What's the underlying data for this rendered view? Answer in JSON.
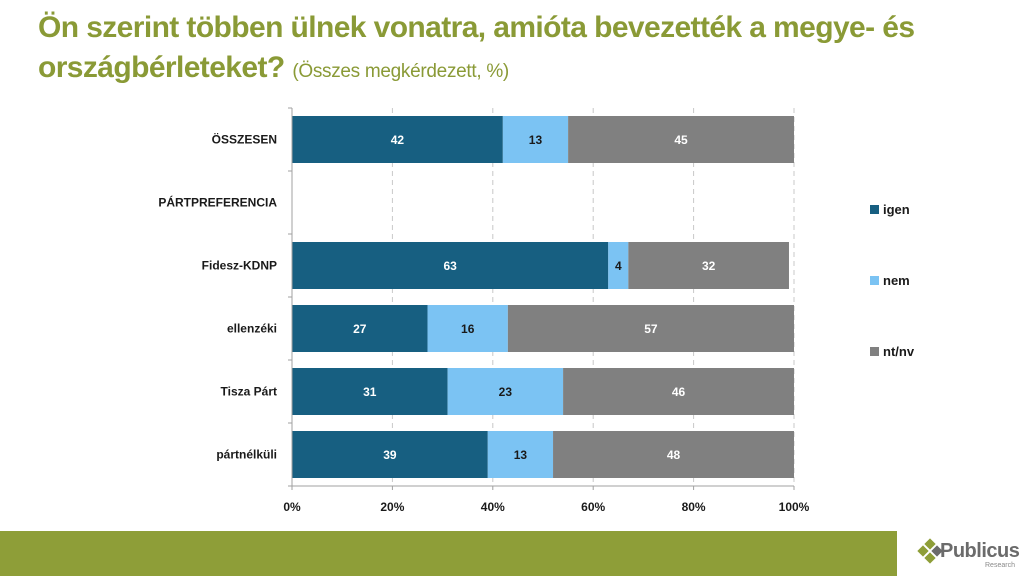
{
  "title": {
    "main": "Ön szerint többen ülnek vonatra, amióta bevezették a megye- és országbérleteket?",
    "subtitle": "(Összes megkérdezett, %)"
  },
  "chart_data": {
    "type": "bar",
    "orientation": "horizontal",
    "stacked": "percent",
    "categories": [
      "ÖSSZESEN",
      "PÁRTPREFERENCIA",
      "Fidesz-KDNP",
      "ellenzéki",
      "Tisza Párt",
      "pártnélküli"
    ],
    "series": [
      {
        "name": "igen",
        "color": "#175f81",
        "label_color": "#ffffff",
        "values": [
          42,
          null,
          63,
          27,
          31,
          39
        ]
      },
      {
        "name": "nem",
        "color": "#7bc3f3",
        "label_color": "#1a1a1a",
        "values": [
          13,
          null,
          4,
          16,
          23,
          13
        ]
      },
      {
        "name": "nt/nv",
        "color": "#808080",
        "label_color": "#ffffff",
        "values": [
          45,
          null,
          32,
          57,
          46,
          48
        ]
      }
    ],
    "xlim": [
      0,
      100
    ],
    "xticks": [
      "0%",
      "20%",
      "40%",
      "60%",
      "80%",
      "100%"
    ],
    "grid": "vertical dashed",
    "legend": "right",
    "title": "Ön szerint többen ülnek vonatra, amióta bevezették a megye- és országbérleteket?",
    "xlabel": "",
    "ylabel": ""
  },
  "brand": {
    "name": "Publicus",
    "tagline": "Research",
    "accent": "#8e9e38",
    "title_color": "#8a9a36"
  }
}
